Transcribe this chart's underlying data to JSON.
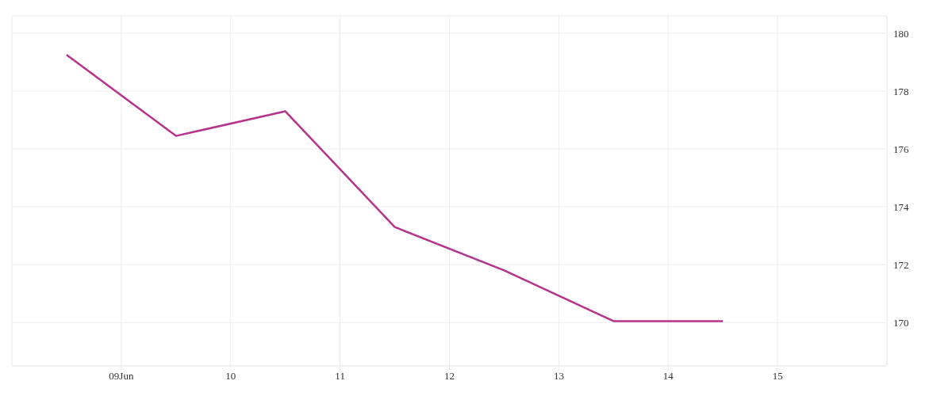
{
  "chart_data": {
    "type": "line",
    "x": [
      "--06-08T12:00",
      "--06-09T12:00",
      "--06-10T12:00",
      "--06-11T12:00",
      "--06-12T12:00",
      "--06-13T12:00",
      "--06-14T12:00"
    ],
    "series": [
      {
        "color": "#b5338a",
        "values": [
          179.25,
          176.45,
          177.3,
          173.3,
          171.8,
          170.05,
          170.05
        ]
      }
    ],
    "xlim": [
      "--06-08",
      "--06-16"
    ],
    "xticks": [
      {
        "value": "--06-09",
        "label": "09Jun"
      },
      {
        "value": "--06-10",
        "label": "10"
      },
      {
        "value": "--06-11",
        "label": "11"
      },
      {
        "value": "--06-12",
        "label": "12"
      },
      {
        "value": "--06-13",
        "label": "13"
      },
      {
        "value": "--06-14",
        "label": "14"
      },
      {
        "value": "--06-15",
        "label": "15"
      }
    ],
    "ylim": [
      168.5,
      180.6
    ],
    "yticks": [
      170,
      172,
      174,
      176,
      178,
      180
    ],
    "grid": true,
    "marker": "none",
    "line_style": "solid",
    "legend": false
  }
}
